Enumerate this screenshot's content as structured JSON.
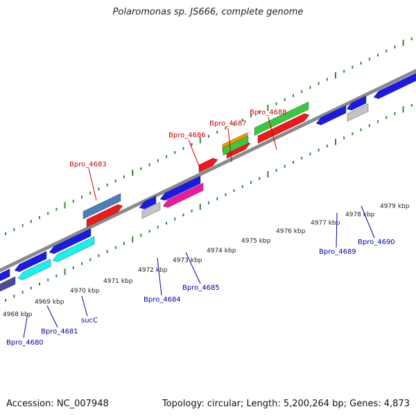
{
  "title": "Polaromonas sp. JS666, complete genome",
  "footer": {
    "accession": "Accession: NC_007948",
    "summary": "Topology: circular; Length: 5,200,264 bp; Genes: 4,873"
  },
  "kbp_labels": [
    "4968 kbp",
    "4969 kbp",
    "4970 kbp",
    "4971 kbp",
    "4972 kbp",
    "4973 kbp",
    "4974 kbp",
    "4975 kbp",
    "4976 kbp",
    "4977 kbp",
    "4978 kbp",
    "4979 kbp"
  ],
  "upper_gene_labels": [
    "Bpro_4683",
    "Bpro_4686",
    "Bpro_4687",
    "Bpro_4688"
  ],
  "lower_gene_labels": [
    "Bpro_4680",
    "Bpro_4681",
    "sucC",
    "Bpro_4684",
    "Bpro_4685",
    "Bpro_4689",
    "Bpro_4690"
  ],
  "colors": {
    "red": "#f01818",
    "blue": "#1a1ae6",
    "steelblue": "#4a80b8",
    "cyan": "#18f0f0",
    "green": "#3cc83c",
    "orange": "#ff9400",
    "magenta": "#f0189a",
    "gray": "#c4c4c4",
    "slate": "#4a4a9a",
    "upper_label": "#cc0000",
    "lower_label": "#0000aa",
    "backbone": "#8a8a8a",
    "ticks": "#2a8a2a"
  }
}
